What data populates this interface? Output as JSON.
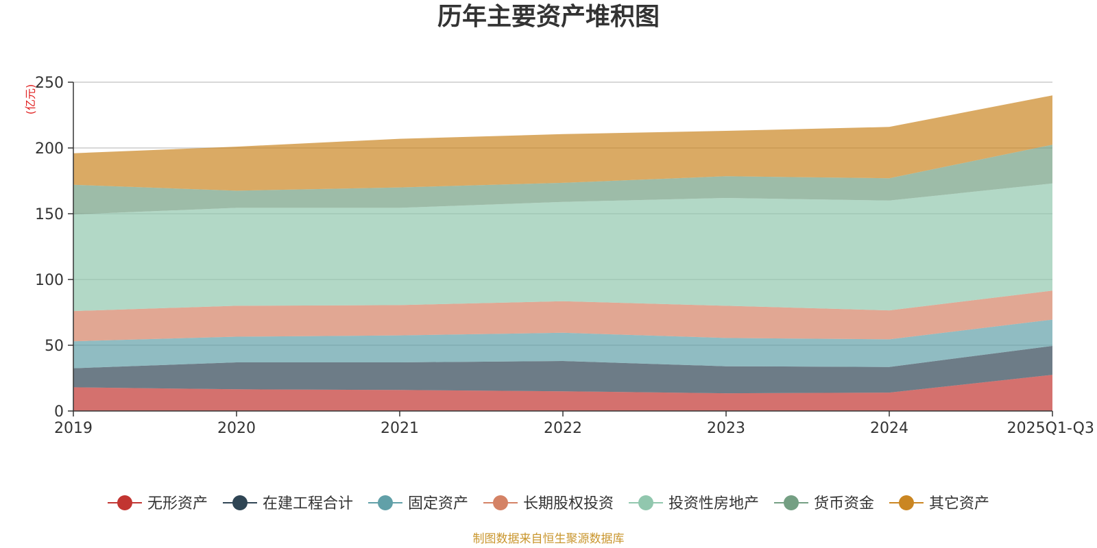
{
  "chart_data": {
    "type": "area",
    "stacked": true,
    "title": "历年主要资产堆积图",
    "y_unit": "(亿元)",
    "categories": [
      "2019",
      "2020",
      "2021",
      "2022",
      "2023",
      "2024",
      "2025Q1-Q3"
    ],
    "y_ticks": [
      "0",
      "50",
      "100",
      "150",
      "200",
      "250"
    ],
    "ylim": [
      0,
      250
    ],
    "grid": true,
    "legend_position": "bottom",
    "series": [
      {
        "name": "无形资产",
        "color": "#c23531",
        "values": [
          18,
          16.5,
          16,
          15,
          13.5,
          14,
          27.5
        ]
      },
      {
        "name": "在建工程合计",
        "color": "#2f4554",
        "values": [
          14.5,
          20.5,
          21,
          23,
          20.5,
          19.5,
          22
        ]
      },
      {
        "name": "固定资产",
        "color": "#61a0a8",
        "values": [
          20.5,
          19.5,
          20.5,
          21.5,
          21.5,
          21,
          20
        ]
      },
      {
        "name": "长期股权投资",
        "color": "#d48265",
        "values": [
          23,
          23.5,
          23,
          24,
          24.5,
          22,
          22
        ]
      },
      {
        "name": "投资性房地产",
        "color": "#91c7ae",
        "values": [
          73.5,
          74.5,
          74,
          75.5,
          82,
          83.5,
          81.5
        ]
      },
      {
        "name": "货币资金",
        "color": "#749f83",
        "values": [
          22.5,
          13,
          15.5,
          14.5,
          16.5,
          17,
          29.5
        ]
      },
      {
        "name": "其它资产",
        "color": "#ca8622",
        "values": [
          24,
          33.5,
          37,
          37,
          34.5,
          39,
          37.5
        ]
      }
    ]
  },
  "source": "制图数据来自恒生聚源数据库"
}
